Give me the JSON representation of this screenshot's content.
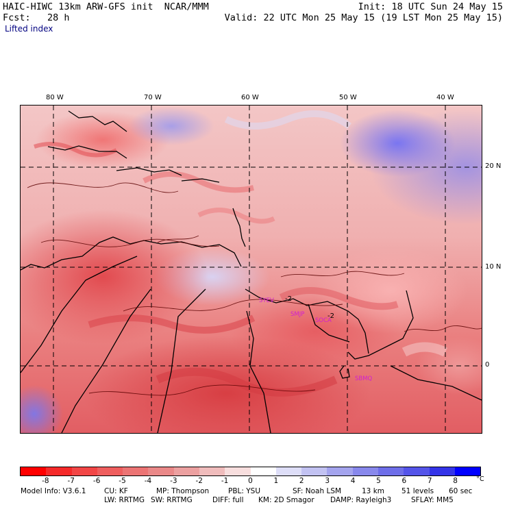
{
  "header": {
    "left_line1": "HAIC-HIWC 13km ARW-GFS init  NCAR/MMM",
    "left_line2": "Fcst:   28 h",
    "right_line1": "Init: 18 UTC Sun 24 May 15",
    "right_line2": "Valid: 22 UTC Mon 25 May 15 (19 LST Mon 25 May 15)",
    "field_name": "Lifted index"
  },
  "map": {
    "lon_labels": [
      "80 W",
      "70 W",
      "60 W",
      "50 W",
      "40 W"
    ],
    "lat_labels": [
      "20 N",
      "10 N",
      "0"
    ],
    "contour_labels": [
      "-2",
      "-2"
    ],
    "stations": [
      "SYEV",
      "SMJP",
      "SOCA",
      "SBMQ"
    ]
  },
  "colorbar": {
    "tick_labels": [
      "-8",
      "-7",
      "-6",
      "-5",
      "-4",
      "-3",
      "-2",
      "-1",
      "0",
      "1",
      "2",
      "3",
      "4",
      "5",
      "6",
      "7",
      "8"
    ],
    "unit": "°C",
    "colors": [
      "#ff0000",
      "#f52a2a",
      "#f24646",
      "#ef5e5e",
      "#ec7474",
      "#ea8888",
      "#eca0a0",
      "#f0bcbc",
      "#f8dede",
      "#ffffff",
      "#dedef8",
      "#c2c2f2",
      "#a4a4ee",
      "#8888ec",
      "#6e6ee9",
      "#5454e9",
      "#3434e8",
      "#0000ff"
    ]
  },
  "footer": {
    "line1": [
      "Model Info: V3.6.1",
      "CU: KF",
      "MP: Thompson",
      "PBL: YSU",
      "SF: Noah LSM",
      "13 km",
      "51 levels",
      "60 sec"
    ],
    "line2": [
      "LW: RRTMG",
      "SW: RRTMG",
      "DIFF: full",
      "KM: 2D Smagor",
      "DAMP: Rayleigh3",
      "SFLAY: MM5"
    ]
  }
}
